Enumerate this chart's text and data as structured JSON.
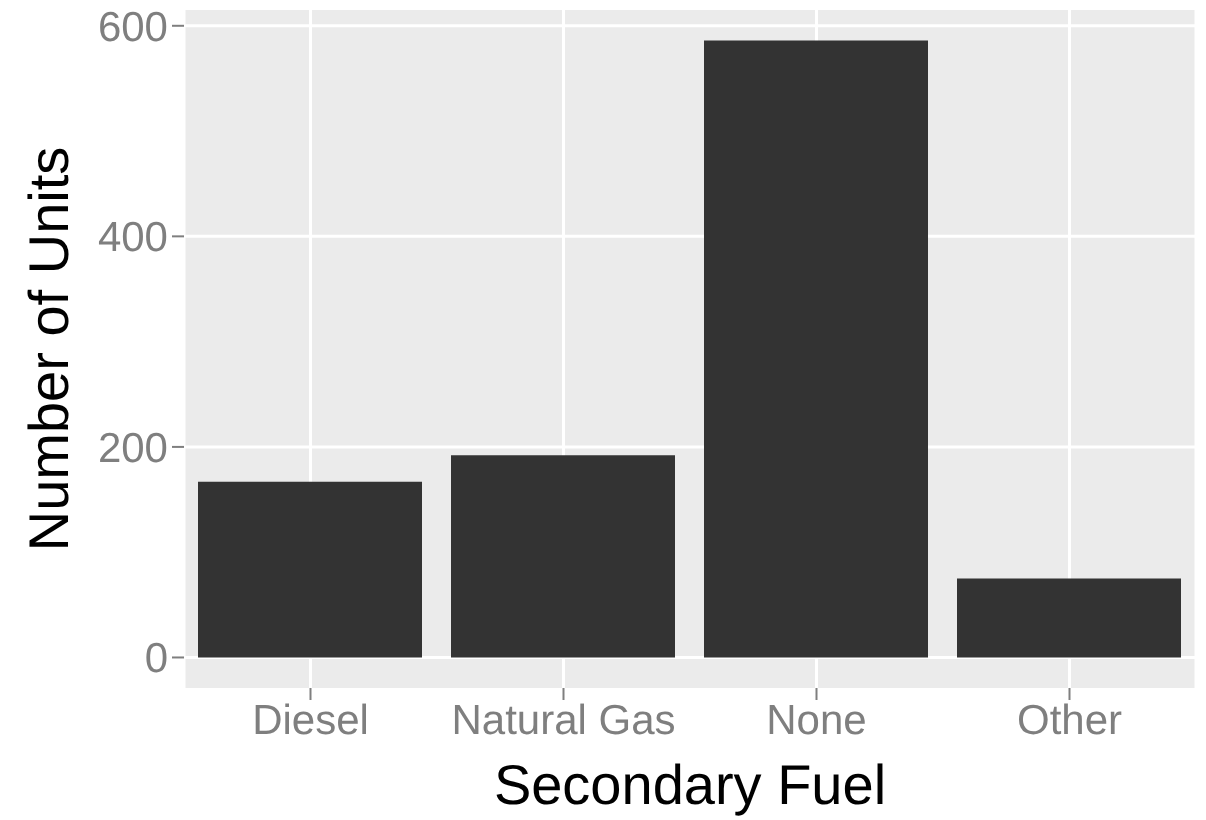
{
  "chart_data": {
    "type": "bar",
    "xlabel": "Secondary Fuel",
    "ylabel": "Number of Units",
    "categories": [
      "Diesel",
      "Natural Gas",
      "None",
      "Other"
    ],
    "values": [
      167,
      192,
      586,
      75
    ],
    "color": "#333333",
    "ylim": [
      -29,
      615
    ],
    "yticks": [
      0,
      200,
      400,
      600
    ],
    "grid": true
  }
}
